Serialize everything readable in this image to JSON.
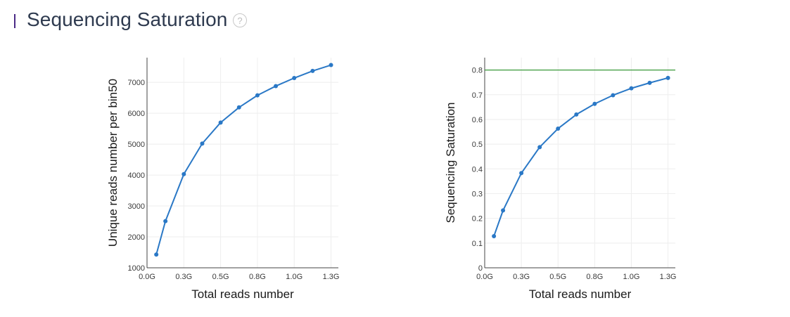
{
  "header": {
    "title": "Sequencing Saturation",
    "help_icon": "?"
  },
  "colors": {
    "line": "#2a78c6",
    "reference": "#3a9a3a",
    "accent": "#4b2a86",
    "grid": "#eeeeee"
  },
  "chart_data": [
    {
      "type": "line",
      "xlabel": "Total reads number",
      "ylabel": "Unique reads number per bin50",
      "xlim": [
        0,
        1.3
      ],
      "ylim": [
        1000,
        7800
      ],
      "xticks": [
        0,
        0.25,
        0.5,
        0.75,
        1.0,
        1.25
      ],
      "xtick_labels": [
        "0.0G",
        "0.3G",
        "0.5G",
        "0.8G",
        "1.0G",
        "1.3G"
      ],
      "yticks": [
        1000,
        2000,
        3000,
        4000,
        5000,
        6000,
        7000
      ],
      "ytick_labels": [
        "1000",
        "2000",
        "3000",
        "4000",
        "5000",
        "6000",
        "7000"
      ],
      "grid": true,
      "series": [
        {
          "x": [
            0.063,
            0.125,
            0.25,
            0.375,
            0.5,
            0.625,
            0.75,
            0.875,
            1.0,
            1.125,
            1.25
          ],
          "y": [
            1430,
            2510,
            4030,
            5020,
            5700,
            6190,
            6580,
            6880,
            7140,
            7370,
            7560
          ]
        }
      ]
    },
    {
      "type": "line",
      "xlabel": "Total reads number",
      "ylabel": "Sequencing Saturation",
      "xlim": [
        0,
        1.3
      ],
      "ylim": [
        0,
        0.85
      ],
      "xticks": [
        0,
        0.25,
        0.5,
        0.75,
        1.0,
        1.25
      ],
      "xtick_labels": [
        "0.0G",
        "0.3G",
        "0.5G",
        "0.8G",
        "1.0G",
        "1.3G"
      ],
      "yticks": [
        0,
        0.1,
        0.2,
        0.3,
        0.4,
        0.5,
        0.6,
        0.7,
        0.8
      ],
      "ytick_labels": [
        "0",
        "0.1",
        "0.2",
        "0.3",
        "0.4",
        "0.5",
        "0.6",
        "0.7",
        "0.8"
      ],
      "grid": true,
      "reference_line": 0.8,
      "series": [
        {
          "x": [
            0.063,
            0.125,
            0.25,
            0.375,
            0.5,
            0.625,
            0.75,
            0.875,
            1.0,
            1.125,
            1.25
          ],
          "y": [
            0.128,
            0.232,
            0.383,
            0.488,
            0.563,
            0.62,
            0.663,
            0.698,
            0.726,
            0.748,
            0.768
          ]
        }
      ]
    }
  ]
}
